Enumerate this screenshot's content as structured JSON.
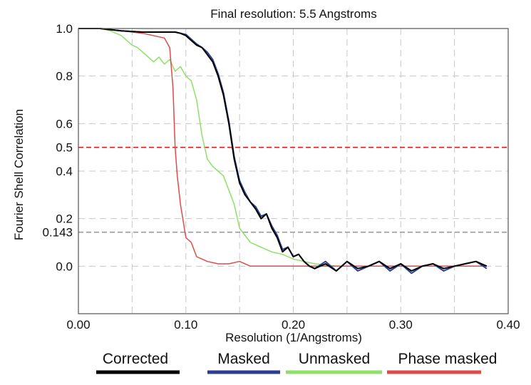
{
  "chart_data": {
    "type": "line",
    "title": "Final resolution: 5.5 Angstroms",
    "xlabel": "Resolution (1/Angstroms)",
    "ylabel": "Fourier Shell Correlation",
    "xlim": [
      0.0,
      0.4
    ],
    "ylim": [
      -0.2,
      1.0
    ],
    "x_ticks": [
      "0.00",
      "0.10",
      "0.20",
      "0.30",
      "0.40"
    ],
    "y_ticks": [
      {
        "value": 1.0,
        "label": "1.0"
      },
      {
        "value": 0.8,
        "label": "0.8"
      },
      {
        "value": 0.6,
        "label": "0.6"
      },
      {
        "value": 0.5,
        "label": "0.5"
      },
      {
        "value": 0.4,
        "label": "0.4"
      },
      {
        "value": 0.2,
        "label": "0.2"
      },
      {
        "value": 0.143,
        "label": "0.143"
      },
      {
        "value": 0.0,
        "label": "0.0"
      }
    ],
    "grid": true,
    "legend_position": "bottom",
    "reference_lines": [
      {
        "y": 0.5,
        "color": "#e02020"
      },
      {
        "y": 0.143,
        "color": "#9a9a9a"
      }
    ],
    "series": [
      {
        "name": "Corrected",
        "color": "#000000",
        "x": [
          0.0,
          0.02,
          0.04,
          0.06,
          0.08,
          0.09,
          0.095,
          0.1,
          0.105,
          0.11,
          0.115,
          0.12,
          0.125,
          0.13,
          0.135,
          0.14,
          0.145,
          0.15,
          0.155,
          0.16,
          0.165,
          0.17,
          0.175,
          0.18,
          0.185,
          0.19,
          0.195,
          0.2,
          0.205,
          0.21,
          0.215,
          0.22,
          0.23,
          0.24,
          0.25,
          0.26,
          0.27,
          0.28,
          0.29,
          0.3,
          0.31,
          0.32,
          0.33,
          0.34,
          0.35,
          0.36,
          0.37,
          0.38
        ],
        "y": [
          1.0,
          1.0,
          0.99,
          0.985,
          0.985,
          0.985,
          0.98,
          0.97,
          0.95,
          0.93,
          0.92,
          0.89,
          0.86,
          0.8,
          0.72,
          0.6,
          0.45,
          0.35,
          0.3,
          0.27,
          0.24,
          0.2,
          0.22,
          0.16,
          0.12,
          0.06,
          0.08,
          0.04,
          0.05,
          0.02,
          0.0,
          -0.01,
          0.01,
          -0.02,
          0.02,
          -0.01,
          0.0,
          0.02,
          -0.01,
          0.01,
          -0.02,
          0.0,
          0.01,
          -0.01,
          0.0,
          0.01,
          0.02,
          0.0
        ]
      },
      {
        "name": "Masked",
        "color": "#2c3e94",
        "x": [
          0.0,
          0.02,
          0.04,
          0.06,
          0.08,
          0.09,
          0.095,
          0.1,
          0.105,
          0.11,
          0.115,
          0.12,
          0.125,
          0.13,
          0.135,
          0.14,
          0.145,
          0.15,
          0.155,
          0.16,
          0.165,
          0.17,
          0.175,
          0.18,
          0.185,
          0.19,
          0.195,
          0.2,
          0.205,
          0.21,
          0.215,
          0.22,
          0.23,
          0.24,
          0.25,
          0.26,
          0.27,
          0.28,
          0.29,
          0.3,
          0.31,
          0.32,
          0.33,
          0.34,
          0.35,
          0.36,
          0.37,
          0.38
        ],
        "y": [
          1.0,
          1.0,
          0.99,
          0.985,
          0.985,
          0.985,
          0.98,
          0.975,
          0.955,
          0.935,
          0.92,
          0.9,
          0.87,
          0.81,
          0.73,
          0.61,
          0.46,
          0.36,
          0.31,
          0.27,
          0.25,
          0.21,
          0.22,
          0.17,
          0.13,
          0.07,
          0.08,
          0.04,
          0.05,
          0.02,
          0.0,
          -0.01,
          0.02,
          -0.02,
          0.02,
          -0.02,
          0.0,
          0.02,
          -0.02,
          0.01,
          -0.03,
          0.0,
          0.01,
          -0.02,
          0.0,
          0.01,
          0.02,
          -0.01
        ]
      },
      {
        "name": "Unmasked",
        "color": "#8ee068",
        "x": [
          0.0,
          0.02,
          0.03,
          0.04,
          0.045,
          0.05,
          0.055,
          0.06,
          0.065,
          0.07,
          0.075,
          0.08,
          0.085,
          0.09,
          0.095,
          0.1,
          0.105,
          0.11,
          0.115,
          0.12,
          0.125,
          0.13,
          0.135,
          0.14,
          0.145,
          0.15,
          0.16,
          0.17,
          0.18,
          0.19,
          0.2,
          0.21,
          0.22,
          0.24,
          0.26,
          0.28,
          0.3,
          0.32,
          0.34,
          0.36,
          0.38
        ],
        "y": [
          1.0,
          1.0,
          0.99,
          0.97,
          0.95,
          0.93,
          0.92,
          0.9,
          0.88,
          0.86,
          0.88,
          0.85,
          0.87,
          0.82,
          0.84,
          0.8,
          0.78,
          0.7,
          0.55,
          0.45,
          0.42,
          0.4,
          0.38,
          0.32,
          0.26,
          0.16,
          0.1,
          0.08,
          0.06,
          0.05,
          0.03,
          0.02,
          0.01,
          0.0,
          0.0,
          0.0,
          0.0,
          0.0,
          0.0,
          0.0,
          0.0
        ]
      },
      {
        "name": "Phase masked",
        "color": "#e04a4a",
        "x": [
          0.0,
          0.02,
          0.04,
          0.06,
          0.08,
          0.085,
          0.088,
          0.09,
          0.092,
          0.095,
          0.1,
          0.105,
          0.11,
          0.12,
          0.13,
          0.14,
          0.15,
          0.16,
          0.18,
          0.2,
          0.22,
          0.25,
          0.28,
          0.3,
          0.33,
          0.36,
          0.38
        ],
        "y": [
          1.0,
          1.0,
          0.99,
          0.98,
          0.96,
          0.92,
          0.75,
          0.5,
          0.38,
          0.26,
          0.12,
          0.1,
          0.04,
          0.02,
          0.01,
          0.01,
          0.02,
          0.0,
          0.0,
          0.0,
          0.0,
          0.0,
          0.0,
          0.0,
          0.0,
          0.0,
          0.0
        ]
      }
    ]
  }
}
